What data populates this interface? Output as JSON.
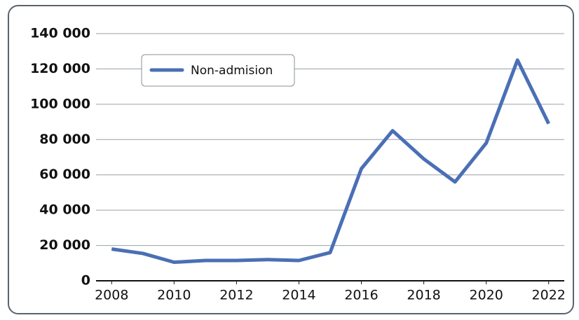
{
  "chart_data": {
    "type": "line",
    "x": [
      2008,
      2009,
      2010,
      2011,
      2012,
      2013,
      2014,
      2015,
      2016,
      2017,
      2018,
      2019,
      2020,
      2021,
      2022
    ],
    "series": [
      {
        "name": "Non-admision",
        "color": "#4a6fb5",
        "values": [
          18000,
          15500,
          10500,
          11500,
          11500,
          12000,
          11500,
          16000,
          63500,
          85000,
          69000,
          56000,
          78000,
          125000,
          89000
        ]
      }
    ],
    "xlim": [
      2007.5,
      2022.5
    ],
    "xticks": [
      2008,
      2010,
      2012,
      2014,
      2016,
      2018,
      2020,
      2022
    ],
    "ylim": [
      0,
      140000
    ],
    "yticks": [
      {
        "value": 0,
        "label": "0"
      },
      {
        "value": 20000,
        "label": "20 000"
      },
      {
        "value": 40000,
        "label": "40 000"
      },
      {
        "value": 60000,
        "label": "60 000"
      },
      {
        "value": 80000,
        "label": "80 000"
      },
      {
        "value": 100000,
        "label": "100 000"
      },
      {
        "value": 120000,
        "label": "120 000"
      },
      {
        "value": 140000,
        "label": "140 000"
      }
    ],
    "grid": true,
    "legend": "upper left"
  }
}
